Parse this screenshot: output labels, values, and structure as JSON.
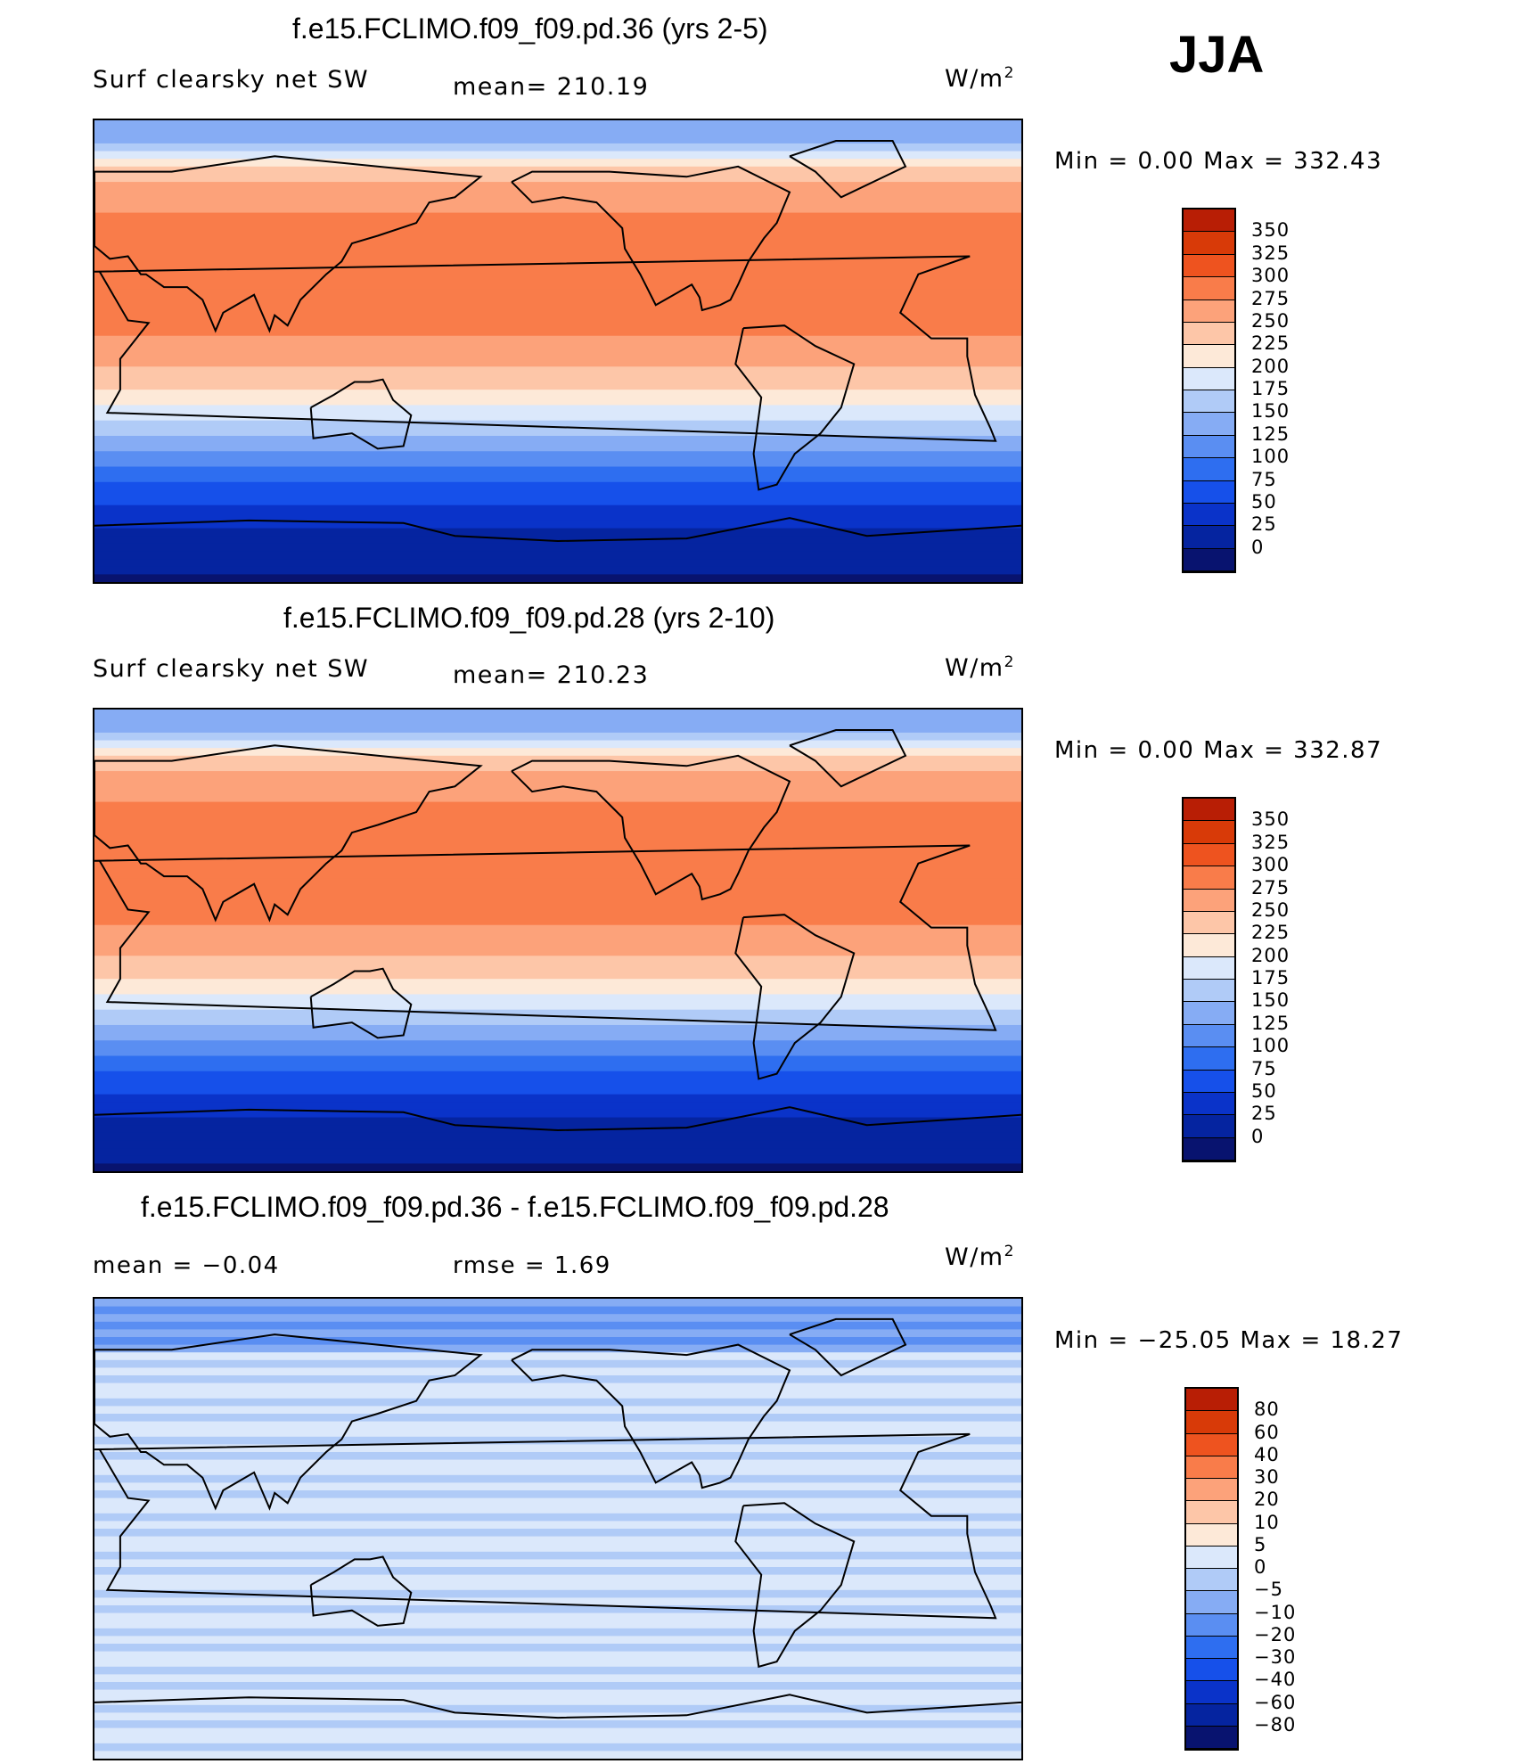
{
  "season": "JJA",
  "colors": {
    "abs_scale": [
      "#08136f",
      "#0524a0",
      "#0a33c9",
      "#1650ea",
      "#2e6ef0",
      "#5a8ef2",
      "#86acf4",
      "#b0cbf7",
      "#dbe8fb",
      "#fde9d8",
      "#fdc6a8",
      "#fca27a",
      "#f97c4a",
      "#ee531f",
      "#d83a08",
      "#b81e05",
      "#8c0c05"
    ],
    "diff_scale": [
      "#08136f",
      "#0524a0",
      "#0a33c9",
      "#1650ea",
      "#2e6ef0",
      "#5a8ef2",
      "#86acf4",
      "#b0cbf7",
      "#dbe8fb",
      "#fde9d8",
      "#fdc6a8",
      "#fca27a",
      "#f97c4a",
      "#ee531f",
      "#d83a08",
      "#b81e05",
      "#8c0c05"
    ]
  },
  "panels": [
    {
      "title": "f.e15.FCLIMO.f09_f09.pd.36 (yrs 2-5)",
      "left_label": "Surf clearsky net SW",
      "center_label": "mean= 210.19",
      "units_label": "W/m",
      "units_sup": "2",
      "minmax": "Min =    0.00 Max = 332.43",
      "colorbar_labels": [
        "350",
        "325",
        "300",
        "275",
        "250",
        "225",
        "200",
        "175",
        "150",
        "125",
        "100",
        "75",
        "50",
        "25",
        "0"
      ]
    },
    {
      "title": "f.e15.FCLIMO.f09_f09.pd.28 (yrs 2-10)",
      "left_label": "Surf clearsky net SW",
      "center_label": "mean= 210.23",
      "units_label": "W/m",
      "units_sup": "2",
      "minmax": "Min =    0.00 Max = 332.87",
      "colorbar_labels": [
        "350",
        "325",
        "300",
        "275",
        "250",
        "225",
        "200",
        "175",
        "150",
        "125",
        "100",
        "75",
        "50",
        "25",
        "0"
      ]
    },
    {
      "title": "f.e15.FCLIMO.f09_f09.pd.36 - f.e15.FCLIMO.f09_f09.pd.28",
      "left_label": "mean =   −0.04",
      "center_label": "rmse =    1.69",
      "units_label": "W/m",
      "units_sup": "2",
      "minmax": "Min = −25.05 Max =  18.27",
      "colorbar_labels": [
        "80",
        "60",
        "40",
        "30",
        "20",
        "10",
        "5",
        "0",
        "−5",
        "−10",
        "−20",
        "−30",
        "−40",
        "−60",
        "−80"
      ]
    }
  ],
  "chart_data": [
    {
      "type": "heatmap",
      "title": "f.e15.FCLIMO.f09_f09.pd.36 (yrs 2-5)",
      "variable": "Surf clearsky net SW",
      "units": "W/m2",
      "mean": 210.19,
      "min": 0.0,
      "max": 332.43,
      "levels": [
        0,
        25,
        50,
        75,
        100,
        125,
        150,
        175,
        200,
        225,
        250,
        275,
        300,
        325,
        350
      ],
      "zonal_bands_lat_deg_to_value": [
        {
          "lat": 85,
          "value": 130
        },
        {
          "lat": 70,
          "value": 240
        },
        {
          "lat": 50,
          "value": 280
        },
        {
          "lat": 30,
          "value": 300
        },
        {
          "lat": 10,
          "value": 280
        },
        {
          "lat": -10,
          "value": 240
        },
        {
          "lat": -25,
          "value": 190
        },
        {
          "lat": -40,
          "value": 120
        },
        {
          "lat": -55,
          "value": 60
        },
        {
          "lat": -75,
          "value": 10
        }
      ]
    },
    {
      "type": "heatmap",
      "title": "f.e15.FCLIMO.f09_f09.pd.28 (yrs 2-10)",
      "variable": "Surf clearsky net SW",
      "units": "W/m2",
      "mean": 210.23,
      "min": 0.0,
      "max": 332.87,
      "levels": [
        0,
        25,
        50,
        75,
        100,
        125,
        150,
        175,
        200,
        225,
        250,
        275,
        300,
        325,
        350
      ],
      "zonal_bands_lat_deg_to_value": [
        {
          "lat": 85,
          "value": 130
        },
        {
          "lat": 70,
          "value": 240
        },
        {
          "lat": 50,
          "value": 280
        },
        {
          "lat": 30,
          "value": 300
        },
        {
          "lat": 10,
          "value": 280
        },
        {
          "lat": -10,
          "value": 240
        },
        {
          "lat": -25,
          "value": 190
        },
        {
          "lat": -40,
          "value": 120
        },
        {
          "lat": -55,
          "value": 60
        },
        {
          "lat": -75,
          "value": 10
        }
      ]
    },
    {
      "type": "heatmap",
      "title": "f.e15.FCLIMO.f09_f09.pd.36 - f.e15.FCLIMO.f09_f09.pd.28",
      "units": "W/m2",
      "mean": -0.04,
      "rmse": 1.69,
      "min": -25.05,
      "max": 18.27,
      "levels": [
        -80,
        -60,
        -40,
        -30,
        -20,
        -10,
        -5,
        0,
        5,
        10,
        20,
        30,
        40,
        60,
        80
      ]
    }
  ]
}
